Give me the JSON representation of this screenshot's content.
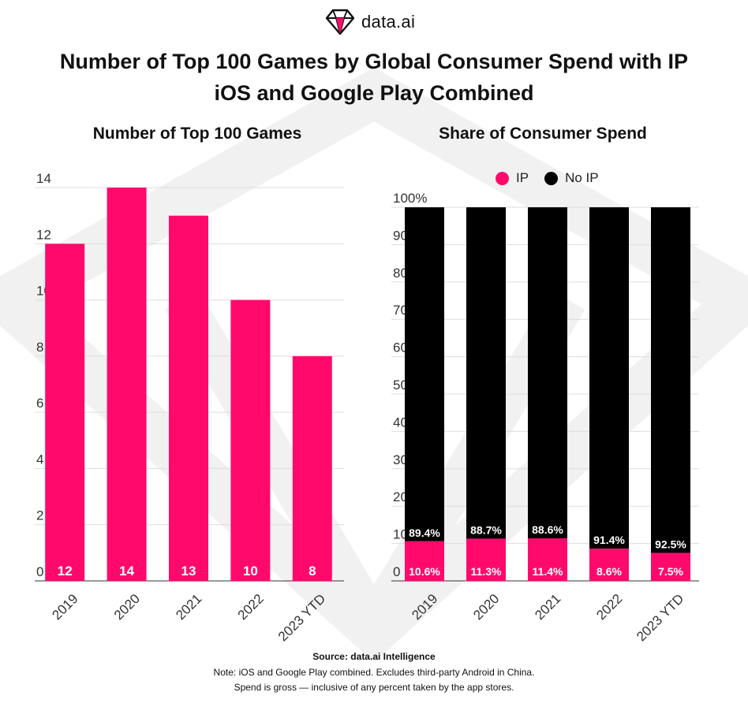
{
  "brand": {
    "name": "data.ai"
  },
  "title": {
    "line1": "Number of Top 100 Games by Global Consumer Spend with IP",
    "line2": "iOS and Google Play Combined"
  },
  "colors": {
    "ip": "#ff0a6c",
    "no_ip": "#000000",
    "grid": "#dddddd",
    "watermark": "#f1f1f1"
  },
  "footer": {
    "source": "Source: data.ai Intelligence",
    "note1": "Note: iOS and Google Play combined. Excludes third-party Android in China.",
    "note2": "Spend is gross — inclusive of any percent taken by the app stores."
  },
  "chart_data": [
    {
      "type": "bar",
      "title": "Number of Top 100 Games",
      "categories": [
        "2019",
        "2020",
        "2021",
        "2022",
        "2023 YTD"
      ],
      "values": [
        12,
        14,
        13,
        10,
        8
      ],
      "data_labels": [
        "12",
        "14",
        "13",
        "10",
        "8"
      ],
      "ylim": [
        0,
        14
      ],
      "yticks": [
        "0",
        "2",
        "4",
        "6",
        "8",
        "10",
        "12",
        "14"
      ],
      "grid": true,
      "color": "#ff0a6c"
    },
    {
      "type": "bar",
      "stacked": true,
      "title": "Share of Consumer Spend",
      "categories": [
        "2019",
        "2020",
        "2021",
        "2022",
        "2023 YTD"
      ],
      "series": [
        {
          "name": "IP",
          "values": [
            10.6,
            11.3,
            11.4,
            8.6,
            7.5
          ],
          "labels": [
            "10.6%",
            "11.3%",
            "11.4%",
            "8.6%",
            "7.5%"
          ],
          "color": "#ff0a6c"
        },
        {
          "name": "No IP",
          "values": [
            89.4,
            88.7,
            88.6,
            91.4,
            92.5
          ],
          "labels": [
            "89.4%",
            "88.7%",
            "88.6%",
            "91.4%",
            "92.5%"
          ],
          "color": "#000000"
        }
      ],
      "ylim": [
        0,
        100
      ],
      "yticks": [
        "0",
        "10%",
        "20%",
        "30%",
        "40%",
        "50%",
        "60%",
        "70%",
        "80%",
        "90%",
        "100%"
      ],
      "legend_position": "top",
      "grid": true
    }
  ]
}
